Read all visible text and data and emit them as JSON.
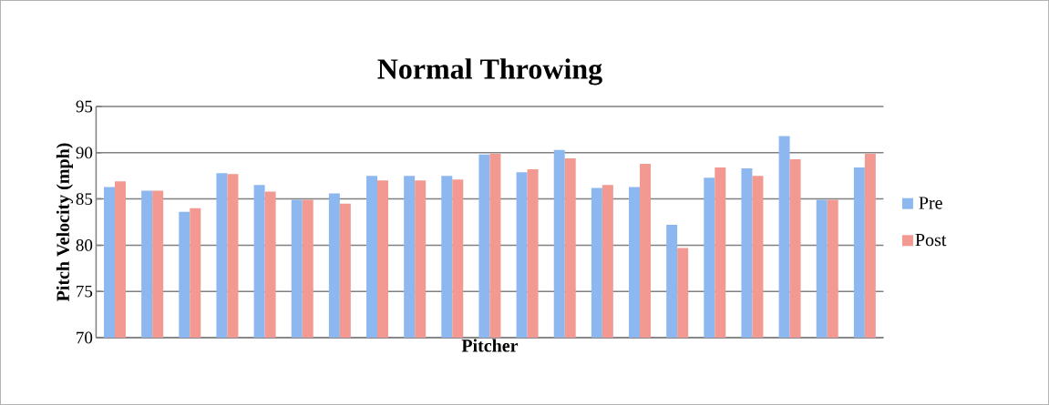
{
  "chart_data": {
    "type": "bar",
    "title": "Normal Throwing",
    "xlabel": "Pitcher",
    "ylabel": "Pitch Velocity (mph)",
    "categories": [
      null,
      null,
      null,
      null,
      null,
      null,
      null,
      null,
      null,
      null,
      null,
      null,
      null,
      null,
      null,
      null,
      null,
      null,
      null,
      null,
      null
    ],
    "series": [
      {
        "name": "Pre",
        "color": "#8db8ef",
        "values": [
          86.3,
          85.9,
          83.6,
          87.8,
          86.5,
          84.9,
          85.6,
          87.5,
          87.5,
          87.5,
          89.8,
          87.9,
          90.3,
          86.2,
          86.3,
          82.2,
          87.3,
          88.3,
          91.8,
          84.9,
          88.4
        ]
      },
      {
        "name": "Post",
        "color": "#f29a92",
        "values": [
          86.9,
          85.9,
          84.0,
          87.7,
          85.8,
          84.9,
          84.5,
          87.0,
          87.0,
          87.1,
          89.9,
          88.2,
          89.4,
          86.5,
          88.8,
          79.7,
          88.4,
          87.5,
          89.3,
          84.9,
          89.9
        ]
      }
    ],
    "ylim": [
      70,
      95
    ],
    "yticks": [
      70,
      75,
      80,
      85,
      90,
      95
    ],
    "grid": "y",
    "legend": "right"
  }
}
